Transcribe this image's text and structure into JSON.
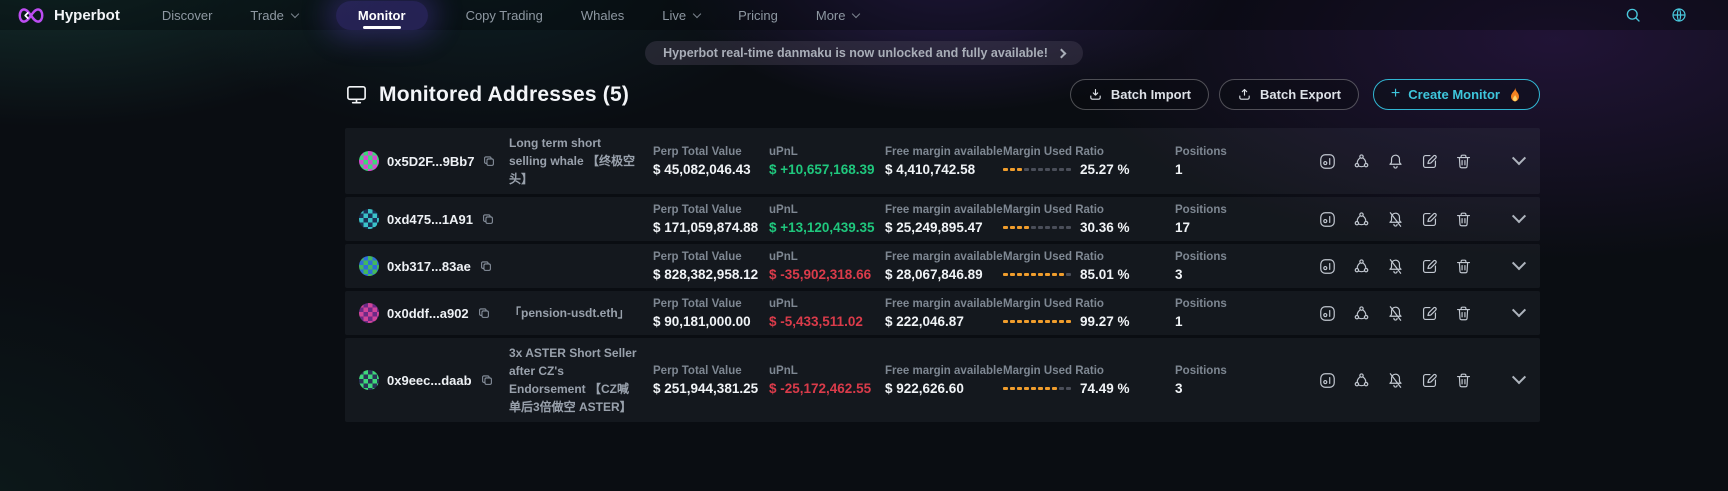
{
  "colors": {
    "accent_teal": "#3ec6dc",
    "positive_green": "#1fc77d",
    "negative_red": "#da3b4a",
    "ratio_dot_orange": "#f09d2c"
  },
  "icons": [
    "logo-infinity-icon",
    "search-icon",
    "globe-icon",
    "monitor-screen-icon",
    "download-icon",
    "upload-icon",
    "plus-icon",
    "fire-icon",
    "copy-icon",
    "stats-icon",
    "share-network-icon",
    "bell-icon",
    "bell-muted-icon",
    "edit-icon",
    "trash-icon",
    "chevron-down-icon",
    "chevron-right-icon"
  ],
  "navbar": {
    "brand": "Hyperbot",
    "items": [
      {
        "label": "Discover",
        "dropdown": false,
        "active": false
      },
      {
        "label": "Trade",
        "dropdown": true,
        "active": false
      },
      {
        "label": "Monitor",
        "dropdown": false,
        "active": true
      },
      {
        "label": "Copy Trading",
        "dropdown": false,
        "active": false
      },
      {
        "label": "Whales",
        "dropdown": false,
        "active": false
      },
      {
        "label": "Live",
        "dropdown": true,
        "active": false
      },
      {
        "label": "Pricing",
        "dropdown": false,
        "active": false
      },
      {
        "label": "More",
        "dropdown": true,
        "active": false
      }
    ]
  },
  "banner": {
    "text": "Hyperbot real-time danmaku is now unlocked and fully available!"
  },
  "header": {
    "title": "Monitored Addresses (5)",
    "batch_import": "Batch Import",
    "batch_export": "Batch Export",
    "create_monitor": "Create Monitor",
    "plus": "+"
  },
  "table": {
    "labels": {
      "perp": "Perp Total Value",
      "upnl": "uPnL",
      "free_margin": "Free margin available",
      "margin_ratio": "Margin Used Ratio",
      "positions": "Positions"
    },
    "rows": [
      {
        "address": "0x5D2F...9Bb7",
        "label": "Long term short selling whale 【终极空头】",
        "perp_total_value": "$ 45,082,046.43",
        "upnl": "$ +10,657,168.39",
        "upnl_positive": true,
        "free_margin": "$ 4,410,742.58",
        "margin_ratio": "25.27 %",
        "margin_ratio_pct": 25.27,
        "positions": "1",
        "bell_muted": false,
        "avatar_colors": [
          "#d44bd0",
          "#3ed67a"
        ]
      },
      {
        "address": "0xd475...1A91",
        "label": "",
        "perp_total_value": "$ 171,059,874.88",
        "upnl": "$ +13,120,439.35",
        "upnl_positive": true,
        "free_margin": "$ 25,249,895.47",
        "margin_ratio": "30.36 %",
        "margin_ratio_pct": 30.36,
        "positions": "17",
        "bell_muted": true,
        "avatar_colors": [
          "#3ac2c9",
          "#1b2f55"
        ]
      },
      {
        "address": "0xb317...83ae",
        "label": "",
        "perp_total_value": "$ 828,382,958.12",
        "upnl": "$ -35,902,318.66",
        "upnl_positive": false,
        "free_margin": "$ 28,067,846.89",
        "margin_ratio": "85.01 %",
        "margin_ratio_pct": 85.01,
        "positions": "3",
        "bell_muted": true,
        "avatar_colors": [
          "#43b85e",
          "#2e6fd8"
        ]
      },
      {
        "address": "0x0ddf...a902",
        "label": "「pension-usdt.eth」",
        "perp_total_value": "$ 90,181,000.00",
        "upnl": "$ -5,433,511.02",
        "upnl_positive": false,
        "free_margin": "$ 222,046.87",
        "margin_ratio": "99.27 %",
        "margin_ratio_pct": 99.27,
        "positions": "1",
        "bell_muted": true,
        "avatar_colors": [
          "#d0449a",
          "#6b2a86"
        ]
      },
      {
        "address": "0x9eec...daab",
        "label": "3x ASTER Short Seller after CZ's Endorsement 【CZ喊单后3倍做空 ASTER】",
        "perp_total_value": "$ 251,944,381.25",
        "upnl": "$ -25,172,462.55",
        "upnl_positive": false,
        "free_margin": "$ 922,626.60",
        "margin_ratio": "74.49 %",
        "margin_ratio_pct": 74.49,
        "positions": "3",
        "bell_muted": true,
        "avatar_colors": [
          "#2a3158",
          "#3ed67a"
        ]
      }
    ]
  }
}
